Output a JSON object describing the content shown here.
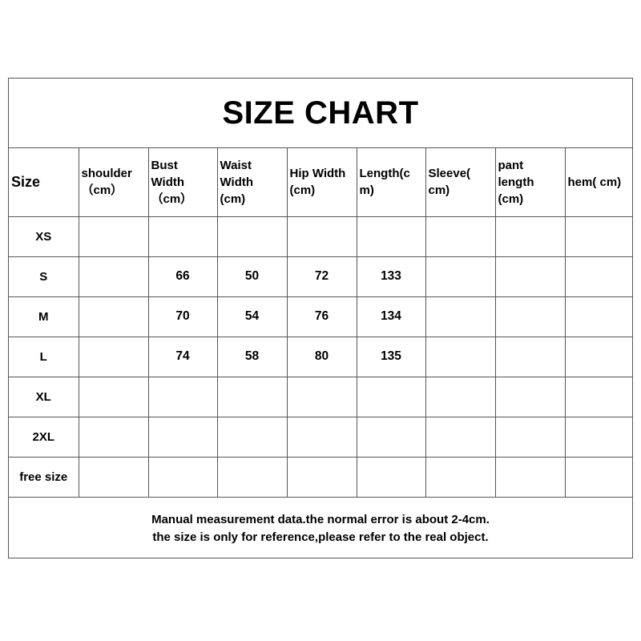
{
  "title": "SIZE CHART",
  "headers": [
    {
      "lines": [
        "Size"
      ]
    },
    {
      "lines": [
        "shoulder",
        "（cm）"
      ]
    },
    {
      "lines": [
        "Bust",
        "Width",
        "（cm）"
      ]
    },
    {
      "lines": [
        "Waist",
        "Width",
        "(cm)"
      ]
    },
    {
      "lines": [
        "Hip Width",
        "(cm)"
      ]
    },
    {
      "lines": [
        "Length(c",
        "m)"
      ]
    },
    {
      "lines": [
        "Sleeve(",
        "cm)"
      ]
    },
    {
      "lines": [
        "pant",
        "length",
        "(cm)"
      ]
    },
    {
      "lines": [
        "hem( cm)"
      ]
    }
  ],
  "rows": [
    [
      "XS",
      "",
      "",
      "",
      "",
      "",
      "",
      "",
      ""
    ],
    [
      "S",
      "",
      "66",
      "50",
      "72",
      "133",
      "",
      "",
      ""
    ],
    [
      "M",
      "",
      "70",
      "54",
      "76",
      "134",
      "",
      "",
      ""
    ],
    [
      "L",
      "",
      "74",
      "58",
      "80",
      "135",
      "",
      "",
      ""
    ],
    [
      "XL",
      "",
      "",
      "",
      "",
      "",
      "",
      "",
      ""
    ],
    [
      "2XL",
      "",
      "",
      "",
      "",
      "",
      "",
      "",
      ""
    ],
    [
      "free size",
      "",
      "",
      "",
      "",
      "",
      "",
      "",
      ""
    ]
  ],
  "footer": [
    "Manual measurement data.the normal error is about 2-4cm.",
    "the size is only for reference,please refer to the real object."
  ]
}
